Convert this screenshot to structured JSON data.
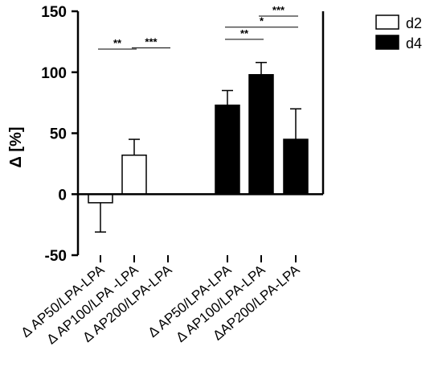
{
  "chart_data": {
    "type": "bar",
    "title": "",
    "xlabel": "",
    "ylabel": "Δ [%]",
    "ylim": [
      -50,
      150
    ],
    "yticks": [
      -50,
      0,
      50,
      100,
      150
    ],
    "grid": false,
    "legend_position": "top-right",
    "categories": [
      "Δ AP50/LPA-LPA",
      "Δ AP100/LPA -LPA",
      "Δ AP200/LPA-LPA",
      "Δ AP50/LPA-LPA",
      "Δ AP100/LPA-LPA",
      "ΔAP200/LPA-LPA"
    ],
    "series": [
      {
        "name": "d2",
        "color": "#ffffff",
        "values": [
          -7,
          32,
          null,
          null,
          null,
          null
        ],
        "errors": [
          24,
          13,
          null,
          null,
          null,
          null
        ]
      },
      {
        "name": "d4",
        "color": "#000000",
        "values": [
          null,
          null,
          null,
          73,
          98,
          45
        ],
        "errors": [
          null,
          null,
          null,
          12,
          10,
          25
        ]
      }
    ],
    "significance": [
      {
        "from": 0,
        "to": 1,
        "label": "**",
        "y": 119
      },
      {
        "from": 1,
        "to": 2,
        "label": "***",
        "y": 120
      },
      {
        "from": 3,
        "to": 4,
        "label": "**",
        "y": 127
      },
      {
        "from": 3,
        "to": 5,
        "label": "*",
        "y": 137
      },
      {
        "from": 4,
        "to": 5,
        "label": "***",
        "y": 146
      }
    ]
  }
}
